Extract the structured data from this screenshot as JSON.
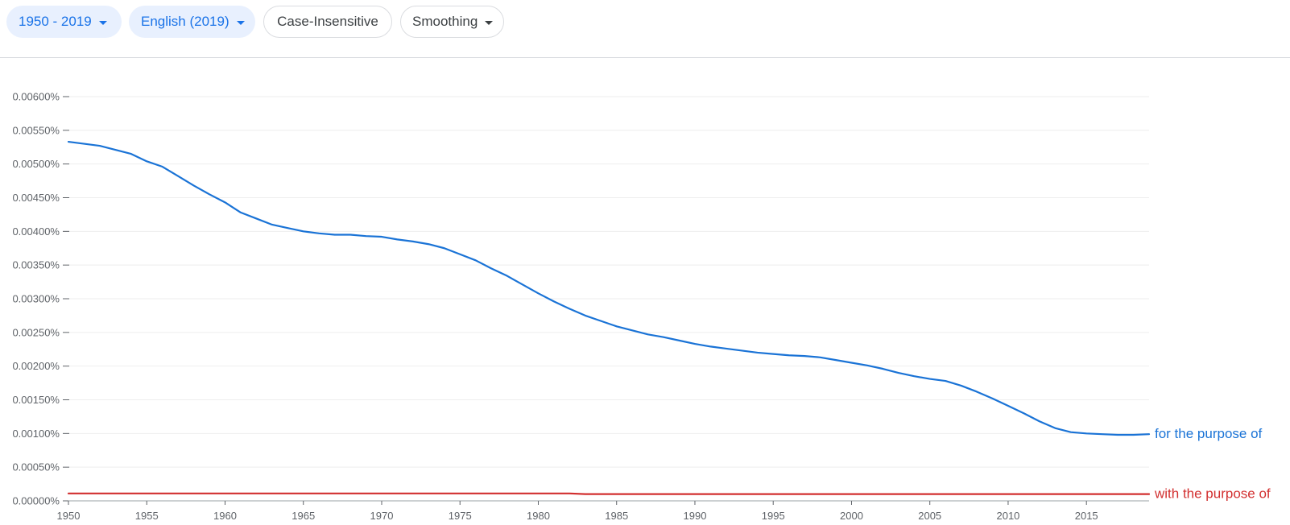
{
  "toolbar": {
    "year_range": "1950 - 2019",
    "corpus": "English (2019)",
    "case_sensitivity": "Case-Insensitive",
    "smoothing": "Smoothing"
  },
  "colors": {
    "accent": "#1a73e8",
    "series_blue": "#1a73d6",
    "series_red": "#d22f2f",
    "grid": "#eeeeee",
    "axis": "#9aa0a6"
  },
  "chart_data": {
    "type": "line",
    "title": "",
    "xlabel": "",
    "ylabel": "",
    "x": [
      1950,
      1951,
      1952,
      1953,
      1954,
      1955,
      1956,
      1957,
      1958,
      1959,
      1960,
      1961,
      1962,
      1963,
      1964,
      1965,
      1966,
      1967,
      1968,
      1969,
      1970,
      1971,
      1972,
      1973,
      1974,
      1975,
      1976,
      1977,
      1978,
      1979,
      1980,
      1981,
      1982,
      1983,
      1984,
      1985,
      1986,
      1987,
      1988,
      1989,
      1990,
      1991,
      1992,
      1993,
      1994,
      1995,
      1996,
      1997,
      1998,
      1999,
      2000,
      2001,
      2002,
      2003,
      2004,
      2005,
      2006,
      2007,
      2008,
      2009,
      2010,
      2011,
      2012,
      2013,
      2014,
      2015,
      2016,
      2017,
      2018,
      2019
    ],
    "xlim": [
      1950,
      2019
    ],
    "ylim": [
      0,
      0.006
    ],
    "xticks": [
      "1950",
      "1955",
      "1960",
      "1965",
      "1970",
      "1975",
      "1980",
      "1985",
      "1990",
      "1995",
      "2000",
      "2005",
      "2010",
      "2015"
    ],
    "yticks": [
      "0.00000%",
      "0.00050%",
      "0.00100%",
      "0.00150%",
      "0.00200%",
      "0.00250%",
      "0.00300%",
      "0.00350%",
      "0.00400%",
      "0.00450%",
      "0.00500%",
      "0.00550%",
      "0.00600%"
    ],
    "grid": true,
    "series": [
      {
        "name": "for the purpose of",
        "color": "#1a73d6",
        "values": [
          0.00533,
          0.0053,
          0.00527,
          0.00521,
          0.00515,
          0.00504,
          0.00496,
          0.00482,
          0.00468,
          0.00455,
          0.00443,
          0.00428,
          0.00419,
          0.0041,
          0.00405,
          0.004,
          0.00397,
          0.00395,
          0.00395,
          0.00393,
          0.00392,
          0.00388,
          0.00385,
          0.00381,
          0.00375,
          0.00366,
          0.00357,
          0.00345,
          0.00334,
          0.00321,
          0.00308,
          0.00296,
          0.00285,
          0.00275,
          0.00267,
          0.00259,
          0.00253,
          0.00247,
          0.00243,
          0.00238,
          0.00233,
          0.00229,
          0.00226,
          0.00223,
          0.0022,
          0.00218,
          0.00216,
          0.00215,
          0.00213,
          0.00209,
          0.00205,
          0.00201,
          0.00196,
          0.0019,
          0.00185,
          0.00181,
          0.00178,
          0.00171,
          0.00162,
          0.00152,
          0.00141,
          0.0013,
          0.00118,
          0.00108,
          0.00102,
          0.001,
          0.00099,
          0.00098,
          0.00098,
          0.00099
        ]
      },
      {
        "name": "with the purpose of",
        "color": "#d22f2f",
        "values": [
          0.00011,
          0.00011,
          0.00011,
          0.00011,
          0.00011,
          0.00011,
          0.00011,
          0.00011,
          0.00011,
          0.00011,
          0.00011,
          0.00011,
          0.00011,
          0.00011,
          0.00011,
          0.00011,
          0.00011,
          0.00011,
          0.00011,
          0.00011,
          0.00011,
          0.00011,
          0.00011,
          0.00011,
          0.00011,
          0.00011,
          0.00011,
          0.00011,
          0.00011,
          0.00011,
          0.00011,
          0.00011,
          0.00011,
          0.0001,
          0.0001,
          0.0001,
          0.0001,
          0.0001,
          0.0001,
          0.0001,
          0.0001,
          0.0001,
          0.0001,
          0.0001,
          0.0001,
          0.0001,
          0.0001,
          0.0001,
          0.0001,
          0.0001,
          0.0001,
          0.0001,
          0.0001,
          0.0001,
          0.0001,
          0.0001,
          0.0001,
          0.0001,
          0.0001,
          0.0001,
          0.0001,
          0.0001,
          0.0001,
          0.0001,
          0.0001,
          0.0001,
          0.0001,
          0.0001,
          0.0001,
          0.0001
        ]
      }
    ]
  }
}
